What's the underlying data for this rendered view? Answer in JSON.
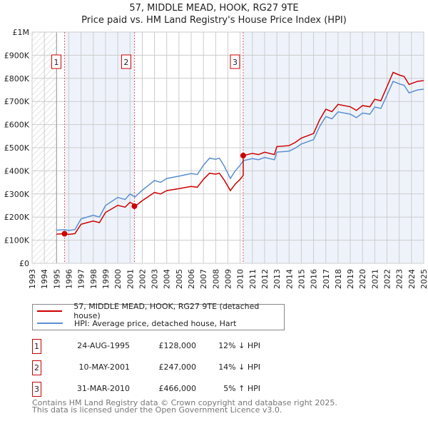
{
  "chart_data": {
    "type": "line",
    "title": "57, MIDDLE MEAD, HOOK, RG27 9TE",
    "subtitle": "Price paid vs. HM Land Registry's House Price Index (HPI)",
    "xlim": [
      1993,
      2025
    ],
    "ylim": [
      0,
      1000000
    ],
    "x_ticks": [
      "1993",
      "1994",
      "1995",
      "1996",
      "1997",
      "1998",
      "1999",
      "2000",
      "2001",
      "2002",
      "2003",
      "2004",
      "2005",
      "2006",
      "2007",
      "2008",
      "2009",
      "2010",
      "2011",
      "2012",
      "2013",
      "2014",
      "2015",
      "2016",
      "2017",
      "2018",
      "2019",
      "2020",
      "2021",
      "2022",
      "2023",
      "2024",
      "2025"
    ],
    "y_ticks": [
      {
        "v": 0,
        "label": "£0"
      },
      {
        "v": 100000,
        "label": "£100K"
      },
      {
        "v": 200000,
        "label": "£200K"
      },
      {
        "v": 300000,
        "label": "£300K"
      },
      {
        "v": 400000,
        "label": "£400K"
      },
      {
        "v": 500000,
        "label": "£500K"
      },
      {
        "v": 600000,
        "label": "£600K"
      },
      {
        "v": 700000,
        "label": "£700K"
      },
      {
        "v": 800000,
        "label": "£800K"
      },
      {
        "v": 900000,
        "label": "£900K"
      },
      {
        "v": 1000000,
        "label": "£1M"
      }
    ],
    "grid": true,
    "colors": {
      "property": "#cc0000",
      "hpi": "#5b8fd0",
      "shade": "#eef3fb"
    },
    "hpi": {
      "x": [
        1995,
        1995.6,
        1996,
        1996.5,
        1997,
        1998,
        1998.5,
        1999,
        2000,
        2000.6,
        2001,
        2001.4,
        2002,
        2003,
        2003.5,
        2004,
        2005,
        2006,
        2006.5,
        2007,
        2007.5,
        2008,
        2008.3,
        2008.7,
        2009.2,
        2009.6,
        2010,
        2010.25,
        2011,
        2011.5,
        2012,
        2012.8,
        2013,
        2014,
        2014.5,
        2015,
        2016,
        2016.5,
        2017,
        2017.5,
        2018,
        2019,
        2019.5,
        2020,
        2020.6,
        2021,
        2021.5,
        2022,
        2022.5,
        2023,
        2023.4,
        2023.8,
        2024.5,
        2025
      ],
      "y": [
        143000,
        146000,
        142000,
        146000,
        192000,
        208000,
        200000,
        250000,
        285000,
        276000,
        300000,
        287000,
        316000,
        358000,
        350000,
        367000,
        377000,
        388000,
        384000,
        424000,
        455000,
        450000,
        455000,
        420000,
        367000,
        400000,
        424000,
        444000,
        453000,
        448000,
        458000,
        448000,
        481000,
        485000,
        498000,
        516000,
        535000,
        592000,
        635000,
        625000,
        655000,
        645000,
        630000,
        650000,
        645000,
        676000,
        670000,
        728000,
        787000,
        776000,
        770000,
        737000,
        750000,
        753000
      ]
    },
    "sales": [
      {
        "id": "1",
        "x": 1995.65,
        "date": "24-AUG-1995",
        "price": 128000,
        "price_label": "£128,000",
        "hpi_label": "12% ↓ HPI"
      },
      {
        "id": "2",
        "x": 2001.36,
        "date": "10-MAY-2001",
        "price": 247000,
        "price_label": "£247,000",
        "hpi_label": "14% ↓ HPI"
      },
      {
        "id": "3",
        "x": 2010.25,
        "date": "31-MAR-2010",
        "price": 466000,
        "price_label": "£466,000",
        "hpi_label": "5% ↑ HPI"
      }
    ],
    "legend": {
      "property": "57, MIDDLE MEAD, HOOK, RG27 9TE (detached house)",
      "hpi": "HPI: Average price, detached house, Hart"
    }
  },
  "footer": {
    "line1": "Contains HM Land Registry data © Crown copyright and database right 2025.",
    "line2": "This data is licensed under the Open Government Licence v3.0."
  }
}
